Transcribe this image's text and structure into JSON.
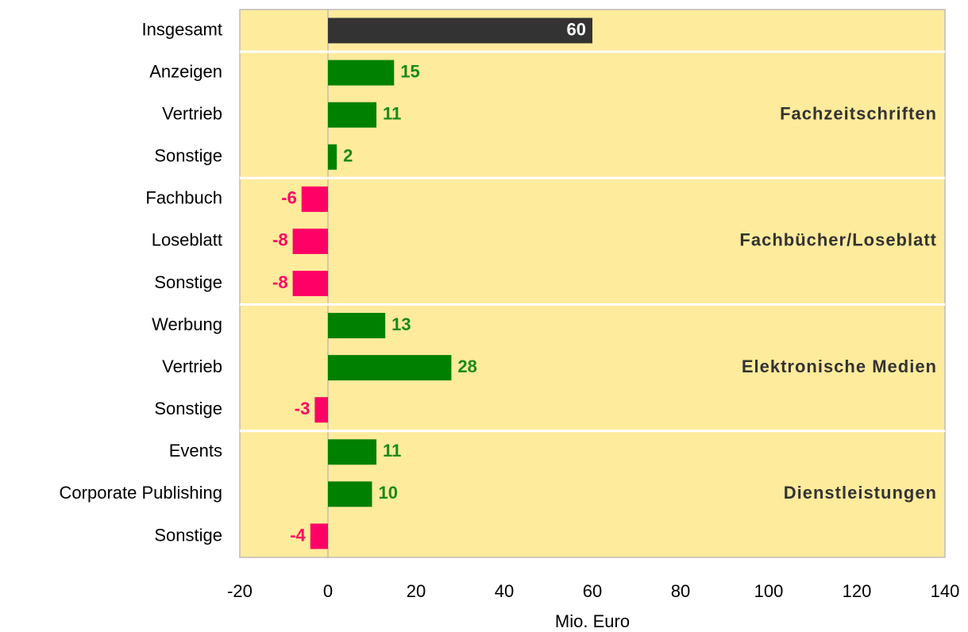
{
  "chart_data": {
    "type": "bar",
    "orientation": "horizontal",
    "categories": [
      "Insgesamt",
      "Anzeigen",
      "Vertrieb",
      "Sonstige",
      "Fachbuch",
      "Loseblatt",
      "Sonstige",
      "Werbung",
      "Vertrieb",
      "Sonstige",
      "Events",
      "Corporate Publishing",
      "Sonstige"
    ],
    "values": [
      60,
      15,
      11,
      2,
      -6,
      -8,
      -8,
      13,
      28,
      -3,
      11,
      10,
      -4
    ],
    "colors": [
      "#333333",
      "#008000",
      "#008000",
      "#008000",
      "#ff0066",
      "#ff0066",
      "#ff0066",
      "#008000",
      "#008000",
      "#ff0066",
      "#008000",
      "#008000",
      "#ff0066"
    ],
    "label_colors": [
      "#ffffff",
      "#1a8a1a",
      "#1a8a1a",
      "#1a8a1a",
      "#ff0066",
      "#ff0066",
      "#ff0066",
      "#1a8a1a",
      "#1a8a1a",
      "#ff0066",
      "#1a8a1a",
      "#1a8a1a",
      "#ff0066"
    ],
    "groups": [
      {
        "label": "Fachzeitschriften",
        "size": 3
      },
      {
        "label": "Fachbücher/Loseblatt",
        "size": 3
      },
      {
        "label": "Elektronische Medien",
        "size": 3
      },
      {
        "label": "Dienstleistungen",
        "size": 3
      }
    ],
    "xlabel": "Mio. Euro",
    "xlim": [
      -20,
      140
    ],
    "xticks": [
      -20,
      0,
      20,
      40,
      60,
      80,
      100,
      120,
      140
    ],
    "background": "#ffeb9c"
  }
}
